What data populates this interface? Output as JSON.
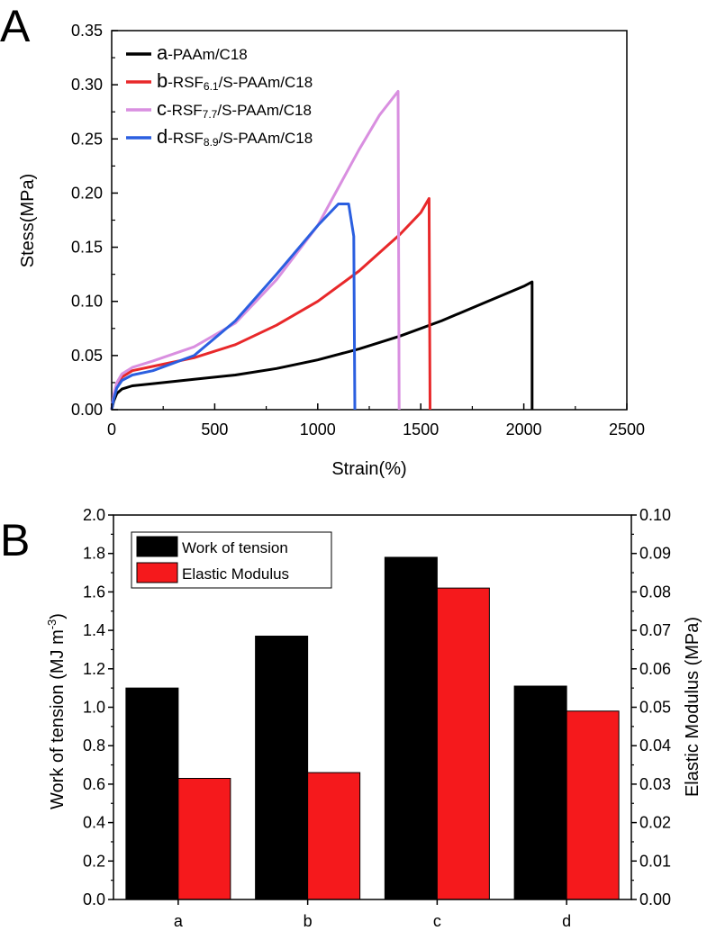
{
  "panel_a": {
    "letter": "A",
    "chart_data": {
      "type": "line",
      "xlabel": "Strain(%)",
      "ylabel": "Stess(MPa)",
      "xlim": [
        0,
        2500
      ],
      "ylim": [
        0,
        0.35
      ],
      "x_ticks": [
        "0",
        "500",
        "1000",
        "1500",
        "2000",
        "2500"
      ],
      "y_ticks": [
        "0.00",
        "0.05",
        "0.10",
        "0.15",
        "0.20",
        "0.25",
        "0.30",
        "0.35"
      ],
      "grid": false,
      "legend_position": "top-left",
      "series": [
        {
          "label_letter": "a",
          "label_main": "-PAAm/C18",
          "color": "#000000",
          "x": [
            0,
            10,
            25,
            50,
            100,
            200,
            400,
            600,
            800,
            1000,
            1200,
            1400,
            1600,
            1800,
            2000,
            2040,
            2040
          ],
          "y": [
            0,
            0.008,
            0.015,
            0.019,
            0.022,
            0.024,
            0.028,
            0.032,
            0.038,
            0.046,
            0.056,
            0.068,
            0.082,
            0.098,
            0.114,
            0.118,
            0
          ]
        },
        {
          "label_letter": "b",
          "label_main": "-RSF",
          "label_sub": "6.1",
          "label_tail": "/S-PAAm/C18",
          "color": "#e8282a",
          "x": [
            0,
            10,
            25,
            50,
            100,
            200,
            400,
            600,
            800,
            1000,
            1200,
            1400,
            1500,
            1540,
            1545
          ],
          "y": [
            0,
            0.012,
            0.022,
            0.03,
            0.036,
            0.04,
            0.048,
            0.06,
            0.078,
            0.1,
            0.128,
            0.162,
            0.182,
            0.195,
            0
          ]
        },
        {
          "label_letter": "c",
          "label_main": "-RSF",
          "label_sub": "7.7",
          "label_tail": "/S-PAAm/C18",
          "color": "#d98fe0",
          "x": [
            0,
            10,
            25,
            50,
            100,
            200,
            400,
            600,
            800,
            1000,
            1100,
            1200,
            1300,
            1390,
            1395
          ],
          "y": [
            0,
            0.014,
            0.025,
            0.033,
            0.039,
            0.045,
            0.058,
            0.08,
            0.12,
            0.17,
            0.205,
            0.24,
            0.272,
            0.294,
            0
          ]
        },
        {
          "label_letter": "d",
          "label_main": "-RSF",
          "label_sub": "8.9",
          "label_tail": "/S-PAAm/C18",
          "color": "#2b5fe0",
          "x": [
            0,
            10,
            25,
            50,
            100,
            200,
            400,
            600,
            800,
            1000,
            1100,
            1150,
            1175,
            1180
          ],
          "y": [
            0,
            0.01,
            0.02,
            0.027,
            0.032,
            0.036,
            0.05,
            0.082,
            0.125,
            0.17,
            0.19,
            0.19,
            0.16,
            0
          ]
        }
      ]
    }
  },
  "panel_b": {
    "letter": "B",
    "chart_data": {
      "type": "bar",
      "categories": [
        "a",
        "b",
        "c",
        "d"
      ],
      "ylabel_left": "Work of tension  (MJ m",
      "ylabel_left_sup": "-3",
      "ylabel_left_tail": ")",
      "ylabel_right": "Elastic Modulus (MPa)",
      "ylim_left": [
        0,
        2.0
      ],
      "ylim_right": [
        0,
        0.1
      ],
      "y_ticks_left": [
        "0.0",
        "0.2",
        "0.4",
        "0.6",
        "0.8",
        "1.0",
        "1.2",
        "1.4",
        "1.6",
        "1.8",
        "2.0"
      ],
      "y_ticks_right": [
        "0.00",
        "0.01",
        "0.02",
        "0.03",
        "0.04",
        "0.05",
        "0.06",
        "0.07",
        "0.08",
        "0.09",
        "0.10"
      ],
      "legend_position": "top-left",
      "series": [
        {
          "name": "Work of tension",
          "color": "#000000",
          "axis": "left",
          "values": [
            1.1,
            1.37,
            1.78,
            1.11
          ]
        },
        {
          "name": "Elastic Modulus",
          "color": "#f5191c",
          "axis": "right",
          "values": [
            0.0315,
            0.033,
            0.081,
            0.049
          ]
        }
      ]
    }
  }
}
